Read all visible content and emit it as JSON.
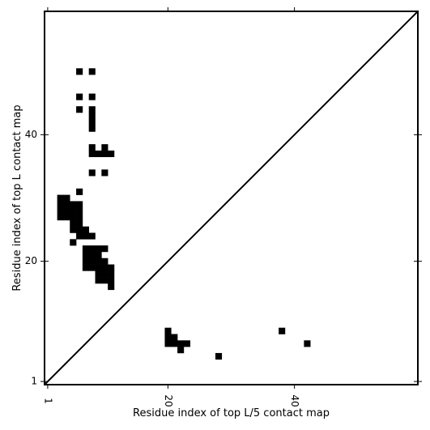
{
  "chart_data": {
    "type": "heatmap",
    "title": "",
    "xlabel": "Residue index of top L/5 contact map",
    "ylabel": "Residue index of top L contact map",
    "xlim": [
      0.5,
      59.5
    ],
    "ylim": [
      0.5,
      59.5
    ],
    "x_ticks": [
      1,
      20,
      40
    ],
    "y_ticks": [
      1,
      20,
      40
    ],
    "x_tick_labels": [
      "1",
      "20",
      "40"
    ],
    "y_tick_labels": [
      "1",
      "20",
      "40"
    ],
    "grid": false,
    "diagonal": true,
    "colors": {
      "contact": "#000000",
      "background": "#ffffff",
      "axis": "#000000"
    },
    "top_L_contacts": [
      [
        6,
        50
      ],
      [
        8,
        50
      ],
      [
        6,
        46
      ],
      [
        8,
        46
      ],
      [
        6,
        44
      ],
      [
        8,
        44
      ],
      [
        8,
        43
      ],
      [
        8,
        42
      ],
      [
        8,
        41
      ],
      [
        8,
        38
      ],
      [
        10,
        38
      ],
      [
        8,
        37
      ],
      [
        9,
        37
      ],
      [
        10,
        37
      ],
      [
        11,
        37
      ],
      [
        8,
        34
      ],
      [
        10,
        34
      ],
      [
        6,
        31
      ],
      [
        3,
        30
      ],
      [
        4,
        30
      ],
      [
        3,
        29
      ],
      [
        4,
        29
      ],
      [
        5,
        29
      ],
      [
        6,
        29
      ],
      [
        3,
        28
      ],
      [
        4,
        28
      ],
      [
        5,
        28
      ],
      [
        6,
        28
      ],
      [
        3,
        27
      ],
      [
        4,
        27
      ],
      [
        5,
        27
      ],
      [
        6,
        27
      ],
      [
        5,
        26
      ],
      [
        6,
        26
      ],
      [
        5,
        25
      ],
      [
        6,
        25
      ],
      [
        7,
        25
      ],
      [
        6,
        24
      ],
      [
        7,
        24
      ],
      [
        8,
        24
      ],
      [
        5,
        23
      ],
      [
        7,
        22
      ],
      [
        8,
        22
      ],
      [
        9,
        22
      ],
      [
        10,
        22
      ],
      [
        7,
        21
      ],
      [
        8,
        21
      ],
      [
        9,
        21
      ],
      [
        7,
        20
      ],
      [
        8,
        20
      ],
      [
        9,
        20
      ],
      [
        10,
        20
      ],
      [
        7,
        19
      ],
      [
        8,
        19
      ],
      [
        9,
        19
      ],
      [
        10,
        19
      ],
      [
        11,
        19
      ],
      [
        9,
        18
      ],
      [
        10,
        18
      ],
      [
        11,
        18
      ],
      [
        9,
        17
      ],
      [
        10,
        17
      ],
      [
        11,
        17
      ],
      [
        11,
        16
      ]
    ],
    "top_L5_contacts": [
      [
        20,
        9
      ],
      [
        20,
        8
      ],
      [
        21,
        8
      ],
      [
        20,
        7
      ],
      [
        21,
        7
      ],
      [
        22,
        7
      ],
      [
        23,
        7
      ],
      [
        22,
        6
      ],
      [
        28,
        5
      ],
      [
        38,
        9
      ],
      [
        42,
        7
      ]
    ]
  }
}
